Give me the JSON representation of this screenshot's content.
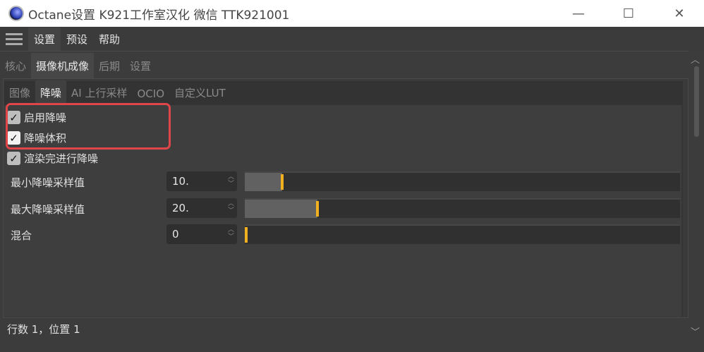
{
  "window": {
    "title": "Octane设置  K921工作室汉化  微信  TTK921001",
    "minimize": "—",
    "maximize": "☐",
    "close": "✕"
  },
  "menubar": {
    "items": [
      "设置",
      "预设",
      "帮助"
    ]
  },
  "tabs": [
    "核心",
    "摄像机成像",
    "后期",
    "设置"
  ],
  "subtabs": [
    "图像",
    "降噪",
    "AI 上行采样",
    "OCIO",
    "自定义LUT"
  ],
  "checkboxes": [
    {
      "label": "启用降噪",
      "checked": true
    },
    {
      "label": "降噪体积",
      "checked": true
    },
    {
      "label": "渲染完进行降噪",
      "checked": true
    }
  ],
  "fields": [
    {
      "label": "最小降噪采样值",
      "value": "10.",
      "slider_fraction": 0.086
    },
    {
      "label": "最大降噪采样值",
      "value": "20.",
      "slider_fraction": 0.167
    },
    {
      "label": "混合",
      "value": "0",
      "slider_fraction": 0.0
    }
  ],
  "status": "行数 1，位置 1",
  "colors": {
    "accent": "#f0b020",
    "highlight": "#e0454a"
  }
}
